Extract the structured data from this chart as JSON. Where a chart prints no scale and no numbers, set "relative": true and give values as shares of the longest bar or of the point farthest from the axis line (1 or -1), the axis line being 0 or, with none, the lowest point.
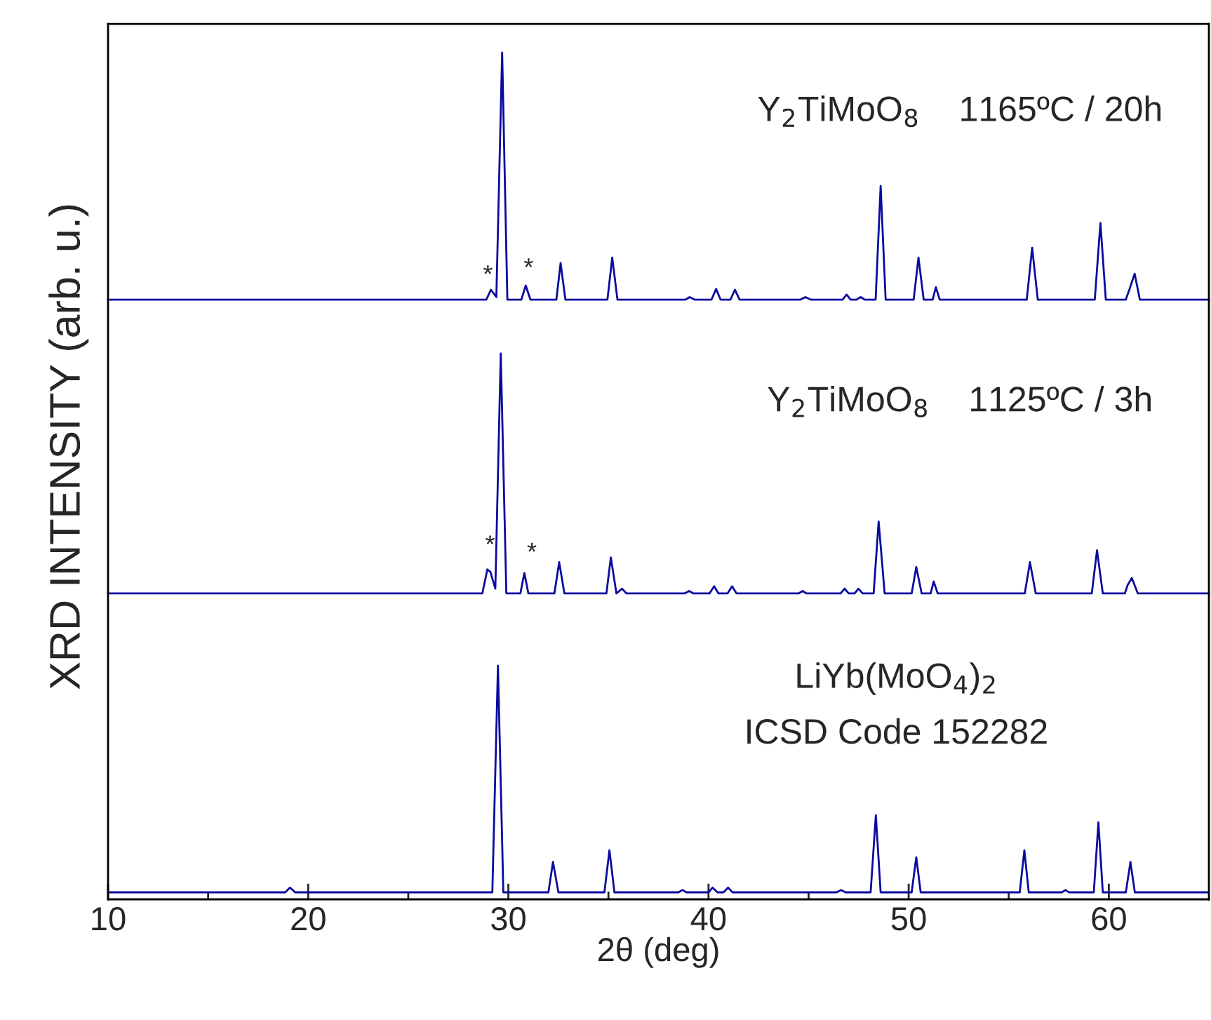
{
  "chart_data": [
    {
      "type": "line",
      "relative": true,
      "color": "#0a0aa0",
      "xlim": [
        10,
        65
      ],
      "tick_labels": false,
      "x": [
        10,
        28.9,
        29.13,
        29.4,
        29.69,
        29.95,
        30.65,
        30.87,
        31.1,
        32.4,
        32.61,
        32.85,
        34.95,
        35.19,
        35.45,
        38.85,
        39.06,
        39.3,
        40.15,
        40.38,
        40.6,
        41.1,
        41.32,
        41.55,
        44.6,
        44.84,
        45.1,
        46.7,
        46.9,
        47.1,
        47.4,
        47.6,
        47.8,
        48.35,
        48.6,
        48.85,
        50.25,
        50.49,
        50.75,
        51.2,
        51.36,
        51.55,
        55.9,
        56.17,
        56.45,
        59.3,
        59.58,
        59.85,
        60.85,
        61.0,
        61.29,
        61.55,
        65
      ],
      "values": [
        0,
        0,
        0.04,
        0.01,
        1,
        0,
        0,
        0.057,
        0,
        0,
        0.148,
        0,
        0,
        0.17,
        0,
        0,
        0.01,
        0,
        0,
        0.043,
        0,
        0,
        0.04,
        0,
        0,
        0.01,
        0,
        0,
        0.02,
        0,
        0,
        0.01,
        0,
        0,
        0.46,
        0,
        0,
        0.17,
        0,
        0,
        0.05,
        0,
        0,
        0.21,
        0,
        0,
        0.31,
        0,
        0,
        0.034,
        0.105,
        0,
        0
      ],
      "annotations": [
        "Y$_{2}$TiMoO$_{8}$    1165ºC / 20h",
        "*",
        "*"
      ]
    },
    {
      "type": "line",
      "relative": true,
      "color": "#0a0aa0",
      "xlim": [
        10,
        65
      ],
      "tick_labels": false,
      "ylabel": "XRD INTENSITY (arb. u.)",
      "x": [
        10,
        28.7,
        28.95,
        29.1,
        29.35,
        29.62,
        29.9,
        30.6,
        30.8,
        31.0,
        32.3,
        32.54,
        32.8,
        34.9,
        35.12,
        35.4,
        35.68,
        35.9,
        38.8,
        39.03,
        39.25,
        40.05,
        40.28,
        40.5,
        40.95,
        41.18,
        41.4,
        44.5,
        44.7,
        44.9,
        46.6,
        46.8,
        47.0,
        47.3,
        47.49,
        47.7,
        48.25,
        48.5,
        48.8,
        50.15,
        50.38,
        50.65,
        51.1,
        51.25,
        51.45,
        55.8,
        56.06,
        56.35,
        59.15,
        59.41,
        59.7,
        60.8,
        60.94,
        61.15,
        61.45,
        65
      ],
      "values": [
        0,
        0,
        0.1,
        0.09,
        0.02,
        1,
        0,
        0,
        0.085,
        0,
        0,
        0.13,
        0,
        0,
        0.15,
        0,
        0.02,
        0,
        0,
        0.01,
        0,
        0,
        0.03,
        0,
        0,
        0.03,
        0,
        0,
        0.01,
        0,
        0,
        0.02,
        0,
        0,
        0.02,
        0,
        0,
        0.3,
        0,
        0,
        0.11,
        0,
        0,
        0.05,
        0,
        0,
        0.13,
        0,
        0,
        0.18,
        0,
        0,
        0.035,
        0.064,
        0,
        0
      ],
      "annotations": [
        "Y$_{2}$TiMoO$_{8}$    1125ºC / 3h",
        "*",
        "*"
      ]
    },
    {
      "type": "line",
      "relative": true,
      "color": "#0a0aa0",
      "xlim": [
        10,
        65
      ],
      "tick_labels": "x",
      "xlabel": "2θ (deg)",
      "xticks": [
        10,
        {
          "value": 15,
          "label": null
        },
        20,
        {
          "value": 25,
          "label": null
        },
        30,
        {
          "value": 35,
          "label": null
        },
        40,
        {
          "value": 45,
          "label": null
        },
        50,
        {
          "value": 55,
          "label": null
        },
        60
      ],
      "x": [
        10,
        18.85,
        19.09,
        19.35,
        29.2,
        29.48,
        29.75,
        32.0,
        32.23,
        32.5,
        34.8,
        35.05,
        35.3,
        38.5,
        38.7,
        38.9,
        40.0,
        40.2,
        40.45,
        40.75,
        40.98,
        41.2,
        46.4,
        46.62,
        46.85,
        48.1,
        48.36,
        48.6,
        50.15,
        50.38,
        50.6,
        55.55,
        55.78,
        56.0,
        57.65,
        57.84,
        58.0,
        59.25,
        59.48,
        59.7,
        60.85,
        61.08,
        61.3,
        65
      ],
      "values": [
        0.03,
        0.03,
        0.05,
        0.03,
        0.03,
        1,
        0.03,
        0.03,
        0.16,
        0.03,
        0.03,
        0.21,
        0.03,
        0.03,
        0.04,
        0.03,
        0.03,
        0.05,
        0.03,
        0.03,
        0.05,
        0.03,
        0.03,
        0.04,
        0.03,
        0.03,
        0.36,
        0.03,
        0.03,
        0.18,
        0.03,
        0.03,
        0.21,
        0.03,
        0.03,
        0.04,
        0.03,
        0.03,
        0.33,
        0.03,
        0.03,
        0.16,
        0.03,
        0.03
      ],
      "annotations": [
        "LiYb(MoO$_{4}$)$_{2}$\nICSD Code 152282"
      ]
    }
  ]
}
